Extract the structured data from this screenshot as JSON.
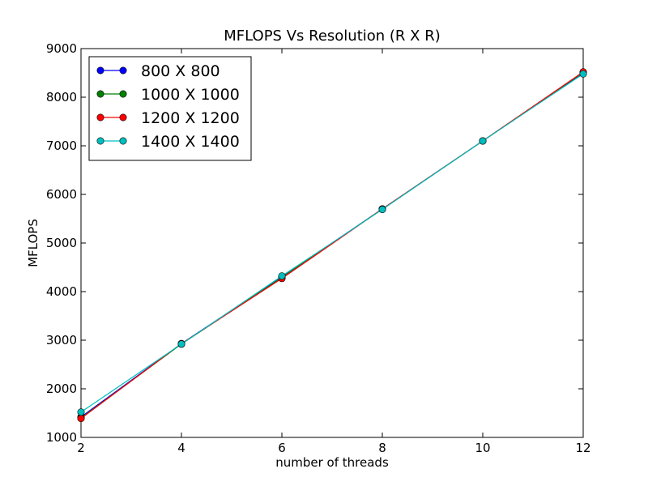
{
  "chart_data": {
    "type": "line",
    "title": "MFLOPS Vs Resolution (R X R)",
    "xlabel": "number of threads",
    "ylabel": "MFLOPS",
    "xlim": [
      2,
      12
    ],
    "ylim": [
      1000,
      9000
    ],
    "xticks": [
      2,
      4,
      6,
      8,
      10,
      12
    ],
    "yticks": [
      1000,
      2000,
      3000,
      4000,
      5000,
      6000,
      7000,
      8000,
      9000
    ],
    "grid": false,
    "legend_position": "top-left",
    "x": [
      2,
      4,
      6,
      8,
      10,
      12
    ],
    "series": [
      {
        "name": "800 X 800",
        "color": "#0000ff",
        "values": [
          1420,
          2930,
          4300,
          5700,
          7100,
          8500
        ]
      },
      {
        "name": "1000 X 1000",
        "color": "#008000",
        "values": [
          1400,
          2920,
          4290,
          5700,
          7100,
          8510
        ]
      },
      {
        "name": "1200 X 1200",
        "color": "#ff0000",
        "values": [
          1390,
          2930,
          4270,
          5700,
          7100,
          8520
        ]
      },
      {
        "name": "1400 X 1400",
        "color": "#00bfbf",
        "values": [
          1520,
          2920,
          4320,
          5690,
          7100,
          8480
        ]
      }
    ]
  }
}
